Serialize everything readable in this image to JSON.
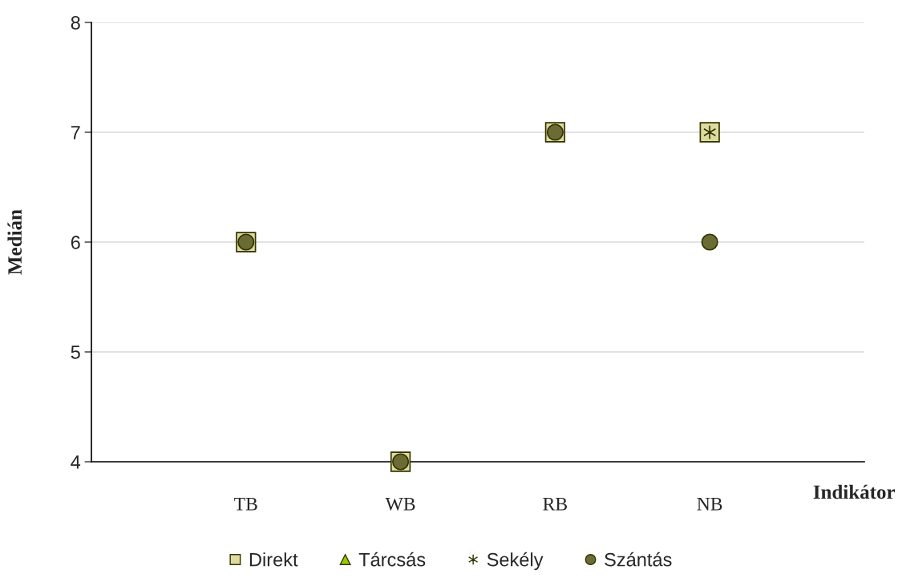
{
  "chart_data": {
    "type": "scatter",
    "ylabel": "Medián",
    "xlabel": "Indikátor",
    "categories": [
      "TB",
      "WB",
      "RB",
      "NB"
    ],
    "series": [
      {
        "name": "Direkt",
        "color": "#dcdca0",
        "marker": "square",
        "values": [
          6,
          4,
          7,
          7
        ]
      },
      {
        "name": "Tárcsás",
        "color": "#99cc00",
        "marker": "triangle",
        "values": [
          null,
          null,
          null,
          null
        ]
      },
      {
        "name": "Sekély",
        "color": "#333300",
        "marker": "cross",
        "values": [
          null,
          null,
          null,
          7
        ]
      },
      {
        "name": "Szántás",
        "color": "#6b6b35",
        "marker": "circle",
        "values": [
          6,
          4,
          7,
          6
        ]
      }
    ],
    "ylim": [
      4,
      8
    ],
    "yticks": [
      4,
      5,
      6,
      7,
      8
    ],
    "grid": "y",
    "legend": "bottom"
  }
}
